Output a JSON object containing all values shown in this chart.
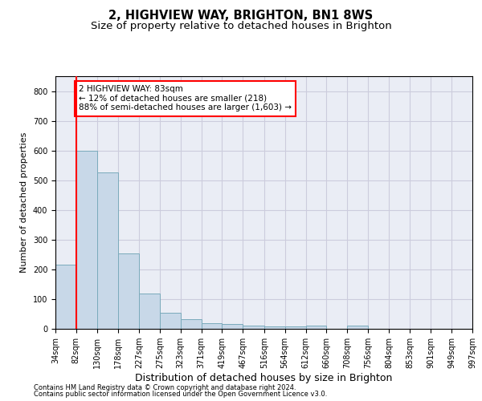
{
  "title": "2, HIGHVIEW WAY, BRIGHTON, BN1 8WS",
  "subtitle": "Size of property relative to detached houses in Brighton",
  "xlabel": "Distribution of detached houses by size in Brighton",
  "ylabel": "Number of detached properties",
  "footer_line1": "Contains HM Land Registry data © Crown copyright and database right 2024.",
  "footer_line2": "Contains public sector information licensed under the Open Government Licence v3.0.",
  "annotation_line1": "2 HIGHVIEW WAY: 83sqm",
  "annotation_line2": "← 12% of detached houses are smaller (218)",
  "annotation_line3": "88% of semi-detached houses are larger (1,603) →",
  "bar_left_edges": [
    34,
    82,
    130,
    178,
    227,
    275,
    323,
    371,
    419,
    467,
    516,
    564,
    612,
    660,
    708,
    756,
    804,
    853,
    901,
    949
  ],
  "bar_widths": [
    48,
    48,
    48,
    49,
    48,
    48,
    48,
    48,
    48,
    49,
    48,
    48,
    48,
    48,
    48,
    48,
    49,
    48,
    48,
    48
  ],
  "bar_heights": [
    215,
    600,
    525,
    255,
    118,
    53,
    32,
    20,
    16,
    11,
    8,
    8,
    10,
    0,
    10,
    0,
    0,
    0,
    0,
    0
  ],
  "bar_color": "#c8d8e8",
  "bar_edgecolor": "#7aaabb",
  "redline_x": 82,
  "xlim": [
    34,
    997
  ],
  "ylim": [
    0,
    850
  ],
  "yticks": [
    0,
    100,
    200,
    300,
    400,
    500,
    600,
    700,
    800
  ],
  "xtick_labels": [
    "34sqm",
    "82sqm",
    "130sqm",
    "178sqm",
    "227sqm",
    "275sqm",
    "323sqm",
    "371sqm",
    "419sqm",
    "467sqm",
    "516sqm",
    "564sqm",
    "612sqm",
    "660sqm",
    "708sqm",
    "756sqm",
    "804sqm",
    "853sqm",
    "901sqm",
    "949sqm",
    "997sqm"
  ],
  "xtick_positions": [
    34,
    82,
    130,
    178,
    227,
    275,
    323,
    371,
    419,
    467,
    516,
    564,
    612,
    660,
    708,
    756,
    804,
    853,
    901,
    949,
    997
  ],
  "grid_color": "#ccccdd",
  "bg_color": "#eaedf5",
  "title_fontsize": 10.5,
  "subtitle_fontsize": 9.5,
  "ylabel_fontsize": 8,
  "xlabel_fontsize": 9,
  "annotation_fontsize": 7.5,
  "footer_fontsize": 6,
  "tick_fontsize": 7
}
